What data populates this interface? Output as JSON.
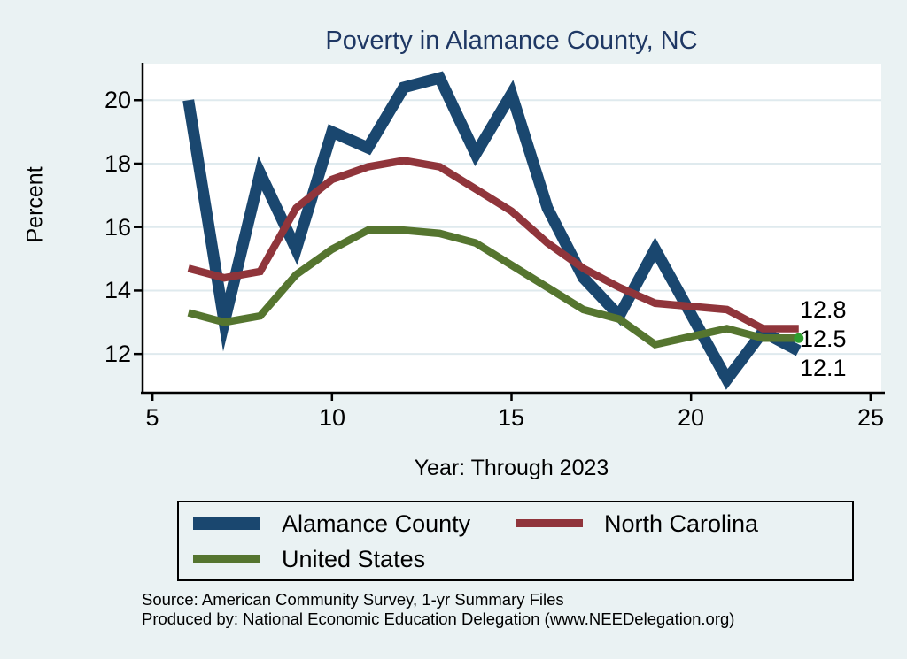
{
  "chart_data": {
    "type": "line",
    "title": "Poverty in Alamance County, NC",
    "xlabel": "Year: Through 2023",
    "ylabel": "Percent",
    "xlim": [
      4.7,
      25.3
    ],
    "ylim": [
      10.75,
      21.15
    ],
    "xticks": [
      5,
      10,
      15,
      20,
      25
    ],
    "yticks": [
      20,
      18,
      16,
      14,
      12
    ],
    "grid": "horizontal gridlines at y ticks only",
    "legend_position": "bottom",
    "x_years": [
      6,
      7,
      8,
      9,
      10,
      11,
      12,
      13,
      14,
      15,
      16,
      17,
      18,
      19,
      21,
      22,
      23
    ],
    "x_note": "x axis = year since 2000; no point for 2020 (line connects 19 to 21)",
    "series": [
      {
        "name": "Alamance County",
        "color": "#1a476f",
        "line_width": 13,
        "values": [
          20.0,
          13.0,
          17.7,
          15.3,
          19.0,
          18.5,
          20.4,
          20.7,
          18.3,
          20.2,
          16.6,
          14.4,
          13.2,
          15.3,
          11.2,
          12.7,
          12.1
        ]
      },
      {
        "name": "North Carolina",
        "color": "#90353b",
        "line_width": 8.5,
        "values": [
          14.7,
          14.4,
          14.6,
          16.6,
          17.5,
          17.9,
          18.1,
          17.9,
          17.2,
          16.5,
          15.5,
          14.7,
          14.1,
          13.6,
          13.4,
          12.8,
          12.8
        ]
      },
      {
        "name": "United States",
        "color": "#55752f",
        "line_width": 8.5,
        "end_marker_color": "#2e9e2e",
        "values": [
          13.3,
          13.0,
          13.2,
          14.5,
          15.3,
          15.9,
          15.9,
          15.8,
          15.5,
          14.8,
          14.1,
          13.4,
          13.1,
          12.3,
          12.8,
          12.5,
          12.5
        ]
      }
    ],
    "end_labels": [
      "12.8",
      "12.5",
      "12.1"
    ]
  },
  "legend": {
    "items": [
      {
        "label": "Alamance County",
        "color": "#1a476f",
        "swatch_height": 14
      },
      {
        "label": "North Carolina",
        "color": "#90353b",
        "swatch_height": 9
      },
      {
        "label": "United States",
        "color": "#55752f",
        "swatch_height": 9
      }
    ]
  },
  "footer": {
    "source_line": "Source: American Community Survey, 1-yr Summary Files",
    "produced_by_line": "Produced by: National Economic Education Delegation (www.NEEDelegation.org)"
  },
  "colors": {
    "background": "#eaf2f3",
    "plot_background": "#ffffff",
    "gridline": "#dfeaee",
    "axis": "#000000",
    "title": "#1f3864"
  }
}
